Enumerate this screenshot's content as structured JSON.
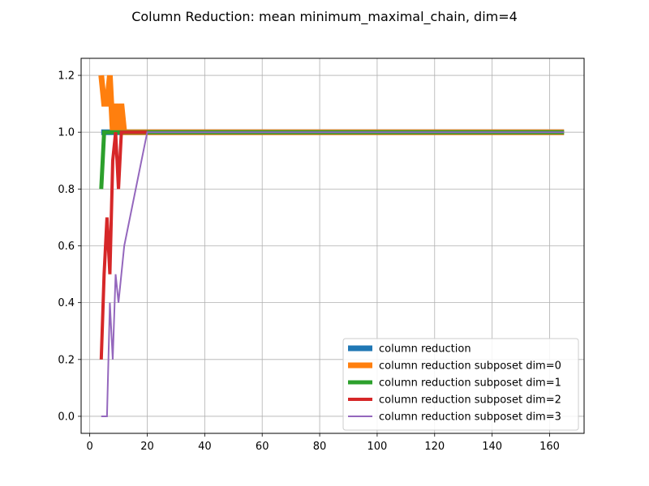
{
  "chart_data": {
    "type": "line",
    "title": "Column Reduction: mean minimum_maximal_chain, dim=4",
    "xlabel": "",
    "ylabel": "",
    "xlim": [
      -3,
      172
    ],
    "ylim": [
      -0.06,
      1.26
    ],
    "xticks": [
      0,
      20,
      40,
      60,
      80,
      100,
      120,
      140,
      160
    ],
    "yticks": [
      0.0,
      0.2,
      0.4,
      0.6,
      0.8,
      1.0,
      1.2
    ],
    "grid": true,
    "legend_position": "lower-right",
    "series": [
      {
        "name": "column reduction",
        "color": "#1f77b4",
        "width": 7,
        "x": [
          4,
          5,
          6,
          7,
          8,
          9,
          10,
          11,
          12,
          20,
          40,
          60,
          80,
          100,
          120,
          140,
          160,
          165
        ],
        "y": [
          1.0,
          1.0,
          1.0,
          1.0,
          1.0,
          1.0,
          1.0,
          1.0,
          1.0,
          1.0,
          1.0,
          1.0,
          1.0,
          1.0,
          1.0,
          1.0,
          1.0,
          1.0
        ]
      },
      {
        "name": "column reduction subposet dim=0",
        "color": "#ff7f0e",
        "width": 7,
        "x": [
          4,
          5,
          6,
          7,
          8,
          9,
          10,
          11,
          12,
          13,
          20,
          40,
          60,
          80,
          100,
          120,
          140,
          160,
          165
        ],
        "y": [
          1.2,
          1.1,
          1.1,
          1.2,
          1.0,
          1.1,
          1.0,
          1.1,
          1.0,
          1.0,
          1.0,
          1.0,
          1.0,
          1.0,
          1.0,
          1.0,
          1.0,
          1.0,
          1.0
        ]
      },
      {
        "name": "column reduction subposet dim=1",
        "color": "#2ca02c",
        "width": 5,
        "x": [
          4,
          5,
          6,
          7,
          8,
          9,
          10,
          11,
          12,
          20,
          40,
          60,
          80,
          100,
          120,
          140,
          160,
          165
        ],
        "y": [
          0.8,
          1.0,
          1.0,
          1.0,
          1.0,
          1.0,
          1.0,
          1.0,
          1.0,
          1.0,
          1.0,
          1.0,
          1.0,
          1.0,
          1.0,
          1.0,
          1.0,
          1.0
        ]
      },
      {
        "name": "column reduction subposet dim=2",
        "color": "#d62728",
        "width": 4,
        "x": [
          4,
          5,
          6,
          7,
          8,
          9,
          10,
          11,
          12,
          20
        ],
        "y": [
          0.2,
          0.5,
          0.7,
          0.5,
          0.9,
          1.0,
          0.8,
          1.0,
          1.0,
          1.0
        ]
      },
      {
        "name": "column reduction subposet dim=3",
        "color": "#9467bd",
        "width": 2,
        "x": [
          4,
          5,
          6,
          7,
          8,
          9,
          10,
          12,
          20,
          40,
          60,
          80,
          100,
          120,
          140,
          160,
          165
        ],
        "y": [
          0.0,
          0.0,
          0.0,
          0.4,
          0.2,
          0.5,
          0.4,
          0.6,
          1.0,
          1.0,
          1.0,
          1.0,
          1.0,
          1.0,
          1.0,
          1.0,
          1.0
        ]
      }
    ]
  }
}
